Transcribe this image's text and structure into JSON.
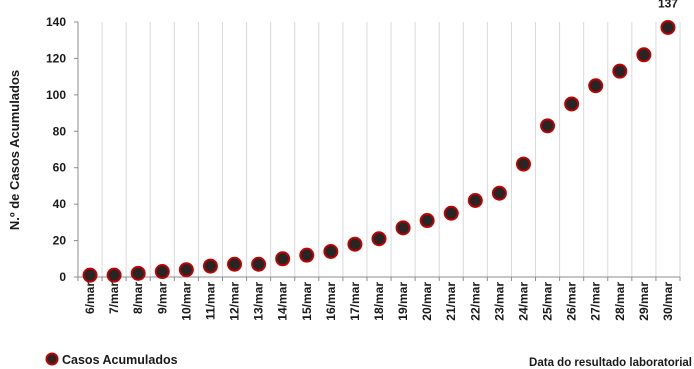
{
  "chart_data": {
    "type": "scatter",
    "categories": [
      "6/mar",
      "7/mar",
      "8/mar",
      "9/mar",
      "10/mar",
      "11/mar",
      "12/mar",
      "13/mar",
      "14/mar",
      "15/mar",
      "16/mar",
      "17/mar",
      "18/mar",
      "19/mar",
      "20/mar",
      "21/mar",
      "22/mar",
      "23/mar",
      "24/mar",
      "25/mar",
      "26/mar",
      "27/mar",
      "28/mar",
      "29/mar",
      "30/mar"
    ],
    "series": [
      {
        "name": "Casos Acumulados",
        "values": [
          1,
          1,
          2,
          3,
          4,
          6,
          7,
          7,
          10,
          12,
          14,
          18,
          21,
          27,
          31,
          35,
          42,
          46,
          62,
          83,
          95,
          105,
          113,
          122,
          137
        ],
        "marker_fill": "#262626",
        "marker_stroke": "#c00000"
      }
    ],
    "ylabel": "N.º de Casos Acumulados",
    "xlabel": "Data do resultado laboratorial",
    "ylim": [
      0,
      140
    ],
    "yticks": [
      "0",
      "20",
      "40",
      "60",
      "80",
      "100",
      "120",
      "140"
    ],
    "data_labels": [
      {
        "index": 24,
        "text": "137"
      }
    ],
    "grid": "vertical",
    "legend_position": "bottom-left",
    "gridline_color": "#d9d9d9"
  }
}
